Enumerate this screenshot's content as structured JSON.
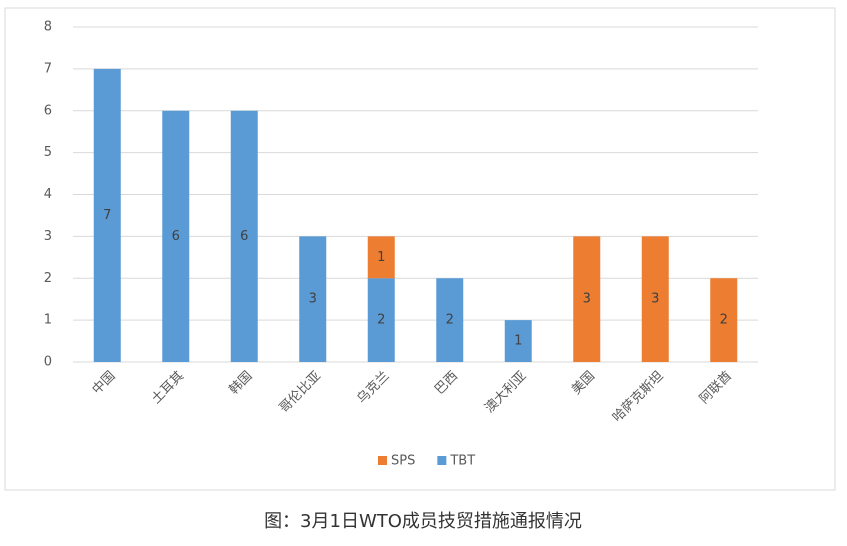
{
  "chart_data": {
    "type": "stacked_bar",
    "categories": [
      "中国",
      "土耳其",
      "韩国",
      "哥伦比亚",
      "乌克兰",
      "巴西",
      "澳大利亚",
      "美国",
      "哈萨克斯坦",
      "阿联酋"
    ],
    "series": [
      {
        "name": "TBT",
        "color": "#5b9bd5",
        "values": [
          7,
          6,
          6,
          3,
          2,
          2,
          1,
          0,
          0,
          0
        ]
      },
      {
        "name": "SPS",
        "color": "#ed7d31",
        "values": [
          0,
          0,
          0,
          0,
          1,
          0,
          0,
          3,
          3,
          2
        ]
      }
    ],
    "ylim": [
      0,
      8
    ],
    "yticks": [
      0,
      1,
      2,
      3,
      4,
      5,
      6,
      7,
      8
    ],
    "grid": true,
    "legend": "bottom"
  },
  "caption": "图：3月1日WTO成员技贸措施通报情况"
}
